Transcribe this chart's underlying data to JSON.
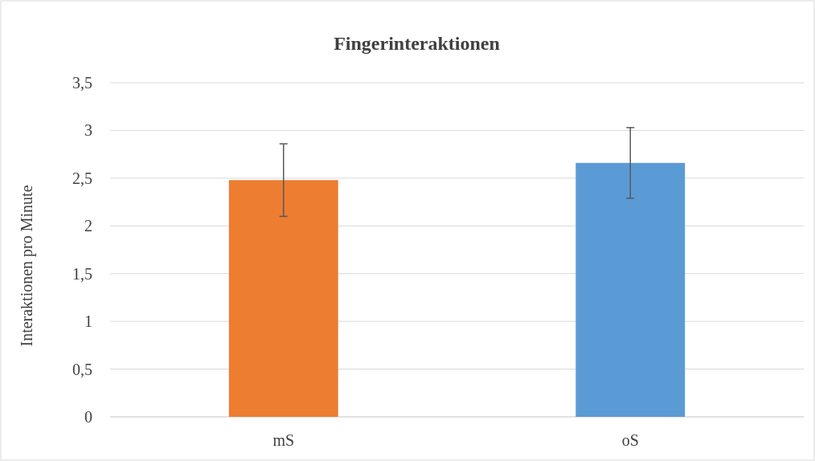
{
  "chart_data": {
    "type": "bar",
    "title": "Fingerinteraktionen",
    "ylabel": "Interaktionen pro Minute",
    "categories": [
      "mS",
      "oS"
    ],
    "values": [
      2.48,
      2.66
    ],
    "colors": [
      "#ed7d31",
      "#5b9bd5"
    ],
    "errors": [
      0.38,
      0.37
    ],
    "ylim": [
      0,
      3.5
    ],
    "yticks": [
      {
        "value": 0,
        "label": "0"
      },
      {
        "value": 0.5,
        "label": "0,5"
      },
      {
        "value": 1,
        "label": "1"
      },
      {
        "value": 1.5,
        "label": "1,5"
      },
      {
        "value": 2,
        "label": "2"
      },
      {
        "value": 2.5,
        "label": "2,5"
      },
      {
        "value": 3,
        "label": "3"
      },
      {
        "value": 3.5,
        "label": "3,5"
      }
    ],
    "grid": "y"
  }
}
